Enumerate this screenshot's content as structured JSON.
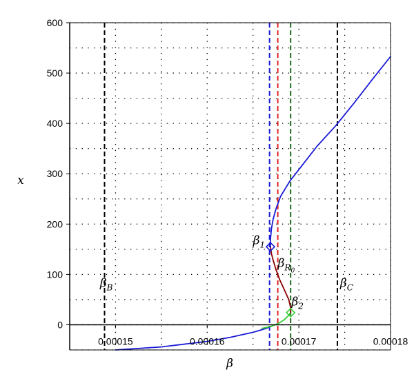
{
  "chart_data": {
    "type": "line",
    "title": "",
    "xlabel": "β",
    "ylabel": "x",
    "xlim": [
      0.000145,
      0.00018
    ],
    "ylim": [
      -50,
      600
    ],
    "grid": true,
    "x_ticks": [
      {
        "value": 0.00015,
        "label": "0.00015"
      },
      {
        "value": 0.00016,
        "label": "0.00016"
      },
      {
        "value": 0.00017,
        "label": "0.00017"
      },
      {
        "value": 0.00018,
        "label": "0.00018"
      }
    ],
    "y_ticks": [
      {
        "value": 0,
        "label": "0"
      },
      {
        "value": 100,
        "label": "100"
      },
      {
        "value": 200,
        "label": "200"
      },
      {
        "value": 300,
        "label": "300"
      },
      {
        "value": 400,
        "label": "400"
      },
      {
        "value": 500,
        "label": "500"
      },
      {
        "value": 600,
        "label": "600"
      }
    ],
    "series": [
      {
        "color": "#1a1ad6",
        "x": [
          0.00015,
          0.000155,
          0.00016,
          0.0001625,
          0.000165,
          0.0001663,
          0.000167
        ],
        "y": [
          -50,
          -44,
          -33,
          -25,
          -15,
          -8,
          -3
        ]
      },
      {
        "color": "#33cc33",
        "x": [
          0.000166,
          0.000167,
          0.0001678,
          0.0001684,
          0.0001688,
          0.0001691
        ],
        "y": [
          -7,
          -3,
          3,
          10,
          17,
          24
        ]
      },
      {
        "color": "#8b0000",
        "x": [
          0.0001691,
          0.0001691,
          0.0001689,
          0.0001684,
          0.0001679,
          0.0001675,
          0.0001672,
          0.000167,
          0.0001669
        ],
        "y": [
          24,
          34,
          50,
          70,
          90,
          110,
          128,
          142,
          155
        ]
      },
      {
        "color": "#1a1ad6",
        "x": [
          0.0001669,
          0.0001669,
          0.000167,
          0.0001672,
          0.0001675,
          0.000168,
          0.000169,
          0.0001705,
          0.000172,
          0.000174,
          0.000176,
          0.000178,
          0.00018
        ],
        "y": [
          155,
          170,
          190,
          210,
          230,
          255,
          285,
          320,
          355,
          395,
          440,
          487,
          533
        ]
      }
    ],
    "vlines": [
      {
        "x": 0.0001488,
        "color": "#000000"
      },
      {
        "x": 0.0001668,
        "color": "#1a1ad6"
      },
      {
        "x": 0.0001677,
        "color": "#e02020"
      },
      {
        "x": 0.0001691,
        "color": "#1a6b1a"
      },
      {
        "x": 0.0001742,
        "color": "#000000"
      }
    ],
    "markers": [
      {
        "x": 0.0001669,
        "y": 155,
        "color": "#1a1ad6",
        "shape": "diamond"
      },
      {
        "x": 0.0001691,
        "y": 24,
        "color": "#33cc33",
        "shape": "diamond"
      }
    ],
    "annotations": [
      {
        "main": "β",
        "sub": "B",
        "x": 0.0001483,
        "y": 75
      },
      {
        "main": "β",
        "sub": "1",
        "x": 0.000165,
        "y": 160
      },
      {
        "main": "β",
        "sub": "R",
        "subsub": "0",
        "x": 0.0001677,
        "y": 115
      },
      {
        "main": "β",
        "sub": "2",
        "x": 0.0001692,
        "y": 38
      },
      {
        "main": "β",
        "sub": "C",
        "x": 0.0001745,
        "y": 75
      }
    ]
  }
}
